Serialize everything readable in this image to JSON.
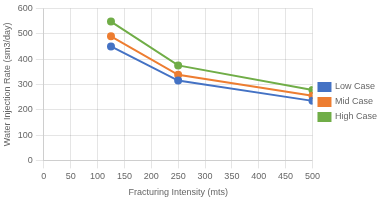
{
  "chart_data": {
    "type": "line",
    "x": [
      125,
      250,
      500
    ],
    "series": [
      {
        "name": "Low Case",
        "color": "#4472C4",
        "values": [
          450,
          315,
          235
        ]
      },
      {
        "name": "Mid Case",
        "color": "#ED7D31",
        "values": [
          490,
          338,
          255
        ]
      },
      {
        "name": "High Case",
        "color": "#70AD47",
        "values": [
          548,
          375,
          278
        ]
      }
    ],
    "xlabel": "Fracturing Intensity (mts)",
    "ylabel": "Water Injection Rate (sm3/day)",
    "xlim": [
      0,
      500
    ],
    "ylim": [
      0,
      600
    ],
    "xticks": [
      0,
      50,
      100,
      150,
      200,
      250,
      300,
      350,
      400,
      450,
      500
    ],
    "yticks": [
      0,
      100,
      200,
      300,
      400,
      500,
      600
    ],
    "marker": "circle",
    "grid": true,
    "legend": "right"
  }
}
